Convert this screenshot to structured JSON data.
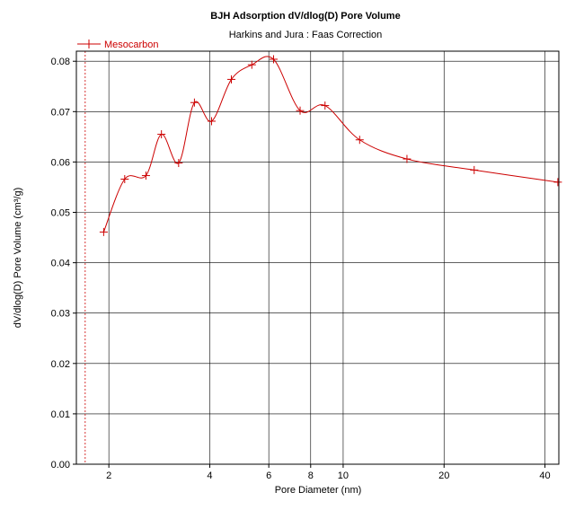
{
  "chart_data": {
    "type": "line",
    "title": "BJH Adsorption dV/dlog(D) Pore Volume",
    "subtitle": "Harkins and Jura : Faas Correction",
    "xlabel": "Pore Diameter (nm)",
    "ylabel": "dV/dlog(D) Pore Volume (cm³/g)",
    "x_scale": "log",
    "xlim": [
      1.6,
      44
    ],
    "ylim": [
      0.0,
      0.082
    ],
    "x_ticks": [
      2,
      4,
      6,
      8,
      10,
      20,
      40
    ],
    "x_tick_labels": [
      "2",
      "4",
      "6",
      "8",
      "10",
      "20",
      "40"
    ],
    "y_ticks": [
      0.0,
      0.01,
      0.02,
      0.03,
      0.04,
      0.05,
      0.06,
      0.07,
      0.08
    ],
    "y_tick_labels": [
      "0.00",
      "0.01",
      "0.02",
      "0.03",
      "0.04",
      "0.05",
      "0.06",
      "0.07",
      "0.08"
    ],
    "grid": true,
    "legend_position": "top-left",
    "reference_line_x": 1.7,
    "series": [
      {
        "name": "Mesocarbon",
        "color": "#cc0000",
        "marker": "plus",
        "x": [
          1.93,
          2.23,
          2.58,
          2.87,
          3.23,
          3.6,
          4.05,
          4.64,
          5.34,
          6.2,
          7.44,
          8.83,
          11.2,
          15.5,
          24.6,
          43.7
        ],
        "y": [
          0.0461,
          0.0566,
          0.0573,
          0.0655,
          0.0598,
          0.0718,
          0.0681,
          0.0764,
          0.0793,
          0.0804,
          0.0702,
          0.0712,
          0.0644,
          0.0606,
          0.0584,
          0.056
        ]
      }
    ]
  }
}
